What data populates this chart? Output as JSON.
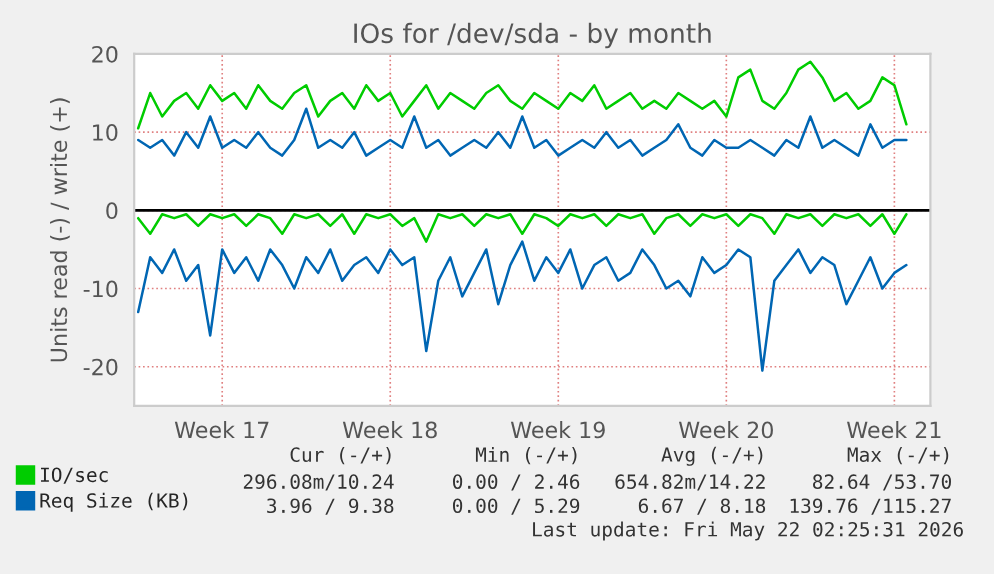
{
  "chart_data": {
    "type": "line",
    "title": "IOs for /dev/sda - by month",
    "ylabel": "Units read (-) / write (+)",
    "x": [
      "2026-04-20T00:00",
      "2026-04-20T12:00",
      "2026-04-21T00:00",
      "2026-04-21T12:00",
      "2026-04-22T00:00",
      "2026-04-22T12:00",
      "2026-04-23T00:00",
      "2026-04-23T12:00",
      "2026-04-24T00:00",
      "2026-04-24T12:00",
      "2026-04-25T00:00",
      "2026-04-25T12:00",
      "2026-04-26T00:00",
      "2026-04-26T12:00",
      "2026-04-27T00:00",
      "2026-04-27T12:00",
      "2026-04-28T00:00",
      "2026-04-28T12:00",
      "2026-04-29T00:00",
      "2026-04-29T12:00",
      "2026-04-30T00:00",
      "2026-04-30T12:00",
      "2026-05-01T00:00",
      "2026-05-01T12:00",
      "2026-05-02T00:00",
      "2026-05-02T12:00",
      "2026-05-03T00:00",
      "2026-05-03T12:00",
      "2026-05-04T00:00",
      "2026-05-04T12:00",
      "2026-05-05T00:00",
      "2026-05-05T12:00",
      "2026-05-06T00:00",
      "2026-05-06T12:00",
      "2026-05-07T00:00",
      "2026-05-07T12:00",
      "2026-05-08T00:00",
      "2026-05-08T12:00",
      "2026-05-09T00:00",
      "2026-05-09T12:00",
      "2026-05-10T00:00",
      "2026-05-10T12:00",
      "2026-05-11T00:00",
      "2026-05-11T12:00",
      "2026-05-12T00:00",
      "2026-05-12T12:00",
      "2026-05-13T00:00",
      "2026-05-13T12:00",
      "2026-05-14T00:00",
      "2026-05-14T12:00",
      "2026-05-15T00:00",
      "2026-05-15T12:00",
      "2026-05-16T00:00",
      "2026-05-16T12:00",
      "2026-05-17T00:00",
      "2026-05-17T12:00",
      "2026-05-18T00:00",
      "2026-05-18T12:00",
      "2026-05-19T00:00",
      "2026-05-19T12:00",
      "2026-05-20T00:00",
      "2026-05-20T12:00",
      "2026-05-21T00:00",
      "2026-05-21T12:00",
      "2026-05-22T00:00"
    ],
    "series": [
      {
        "name": "IO/sec",
        "color": "#00cc00",
        "values": [
          10.5,
          15,
          12,
          14,
          15,
          13,
          16,
          14,
          15,
          13,
          16,
          14,
          13,
          15,
          16,
          12,
          14,
          15,
          13,
          16,
          14,
          15,
          12,
          14,
          16,
          13,
          15,
          14,
          13,
          15,
          16,
          14,
          13,
          15,
          14,
          13,
          15,
          14,
          16,
          13,
          14,
          15,
          13,
          14,
          13,
          15,
          14,
          13,
          14,
          12,
          17,
          18,
          14,
          13,
          15,
          18,
          19,
          17,
          14,
          15,
          13,
          14,
          17,
          16,
          11
        ]
      },
      {
        "name": "Req Size (KB)",
        "color": "#0066b3",
        "values": [
          9,
          8,
          9,
          7,
          10,
          8,
          12,
          8,
          9,
          8,
          10,
          8,
          7,
          9,
          13,
          8,
          9,
          8,
          10,
          7,
          8,
          9,
          8,
          12,
          8,
          9,
          7,
          8,
          9,
          8,
          10,
          8,
          12,
          8,
          9,
          7,
          8,
          9,
          8,
          10,
          8,
          9,
          7,
          8,
          9,
          11,
          8,
          7,
          9,
          8,
          8,
          9,
          8,
          7,
          9,
          8,
          12,
          8,
          9,
          8,
          7,
          11,
          8,
          9,
          9
        ]
      },
      {
        "color": "#00cc00",
        "values": [
          -1,
          -3,
          -0.5,
          -1,
          -0.5,
          -2,
          -0.5,
          -1,
          -0.5,
          -2,
          -0.5,
          -1,
          -3,
          -0.5,
          -1,
          -0.5,
          -2,
          -0.5,
          -3,
          -0.5,
          -1,
          -0.5,
          -2,
          -1,
          -4,
          -0.5,
          -1,
          -0.5,
          -2,
          -0.5,
          -1,
          -0.5,
          -3,
          -0.5,
          -1,
          -2,
          -0.5,
          -1,
          -0.5,
          -2,
          -0.5,
          -1,
          -0.5,
          -3,
          -1,
          -0.5,
          -2,
          -0.5,
          -1,
          -0.5,
          -2,
          -0.5,
          -1,
          -3,
          -0.5,
          -1,
          -0.5,
          -2,
          -0.5,
          -1,
          -0.5,
          -2,
          -0.5,
          -3,
          -0.5
        ]
      },
      {
        "color": "#0066b3",
        "values": [
          -13,
          -6,
          -8,
          -5,
          -9,
          -7,
          -16,
          -5,
          -8,
          -6,
          -9,
          -5,
          -7,
          -10,
          -6,
          -8,
          -5,
          -9,
          -7,
          -6,
          -8,
          -5,
          -7,
          -6,
          -18,
          -9,
          -6,
          -11,
          -8,
          -5,
          -12,
          -7,
          -4,
          -9,
          -6,
          -8,
          -5,
          -10,
          -7,
          -6,
          -9,
          -8,
          -5,
          -7,
          -10,
          -9,
          -11,
          -6,
          -8,
          -7,
          -5,
          -6,
          -20.5,
          -9,
          -7,
          -5,
          -8,
          -6,
          -7,
          -12,
          -9,
          -6,
          -10,
          -8,
          -7
        ]
      }
    ],
    "xlim": [
      "2026-04-19T20:00",
      "2026-05-23T00:00"
    ],
    "xticks": [
      {
        "value": "2026-04-23T12:00",
        "label": "Week 17"
      },
      {
        "value": "2026-04-30T12:00",
        "label": "Week 18"
      },
      {
        "value": "2026-05-07T12:00",
        "label": "Week 19"
      },
      {
        "value": "2026-05-14T12:00",
        "label": "Week 20"
      },
      {
        "value": "2026-05-21T12:00",
        "label": "Week 21"
      }
    ],
    "ylim": [
      -25,
      20
    ],
    "yticks": [
      -20,
      -10,
      0,
      10,
      20
    ],
    "ref_lines": [
      {
        "axis": "y",
        "value": 0,
        "color": "#000000"
      }
    ],
    "grid": true,
    "legend": "bottom left",
    "marker": "none",
    "line_style": "solid",
    "annotations": [
      "Cur (-/+)",
      "Min (-/+)",
      "Avg (-/+)",
      "Max (-/+)",
      "296.08m/10.24",
      "0.00 / 2.46",
      "654.82m/14.22",
      "82.64 /53.70",
      "3.96 / 9.38",
      "0.00 / 5.29",
      "6.67 / 8.18",
      "139.76 /115.27",
      "Last update: Fri May 22 02:25:31 2026"
    ]
  }
}
